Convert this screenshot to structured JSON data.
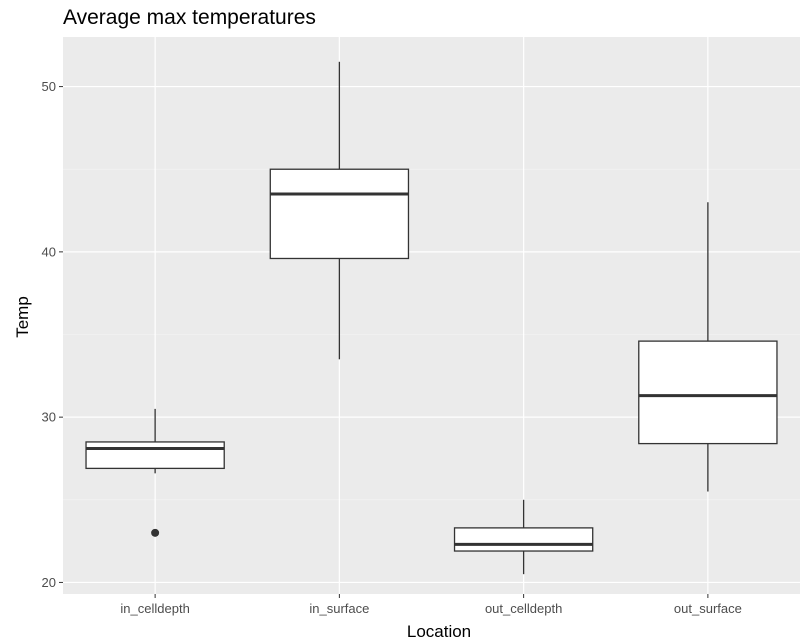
{
  "chart_data": {
    "type": "boxplot",
    "title": "Average max temperatures",
    "xlabel": "Location",
    "ylabel": "Temp",
    "categories": [
      "in_celldepth",
      "in_surface",
      "out_celldepth",
      "out_surface"
    ],
    "ylim": [
      19.3,
      53.0
    ],
    "yticks": [
      20,
      30,
      40,
      50
    ],
    "grid": true,
    "legend": "none",
    "boxes": [
      {
        "category": "in_celldepth",
        "whisker_low": 26.6,
        "q1": 26.9,
        "median": 28.1,
        "q3": 28.5,
        "whisker_high": 30.5,
        "outliers": [
          23.0
        ]
      },
      {
        "category": "in_surface",
        "whisker_low": 33.5,
        "q1": 39.6,
        "median": 43.5,
        "q3": 45.0,
        "whisker_high": 51.5,
        "outliers": []
      },
      {
        "category": "out_celldepth",
        "whisker_low": 20.5,
        "q1": 21.9,
        "median": 22.3,
        "q3": 23.3,
        "whisker_high": 25.0,
        "outliers": []
      },
      {
        "category": "out_surface",
        "whisker_low": 25.5,
        "q1": 28.4,
        "median": 31.3,
        "q3": 34.6,
        "whisker_high": 43.0,
        "outliers": []
      }
    ],
    "colors": {
      "panel_background": "#ebebeb",
      "grid_major": "#ffffff",
      "box_fill": "#ffffff",
      "box_outline": "#333333",
      "outlier": "#333333",
      "tick_text": "#4d4d4d"
    }
  }
}
